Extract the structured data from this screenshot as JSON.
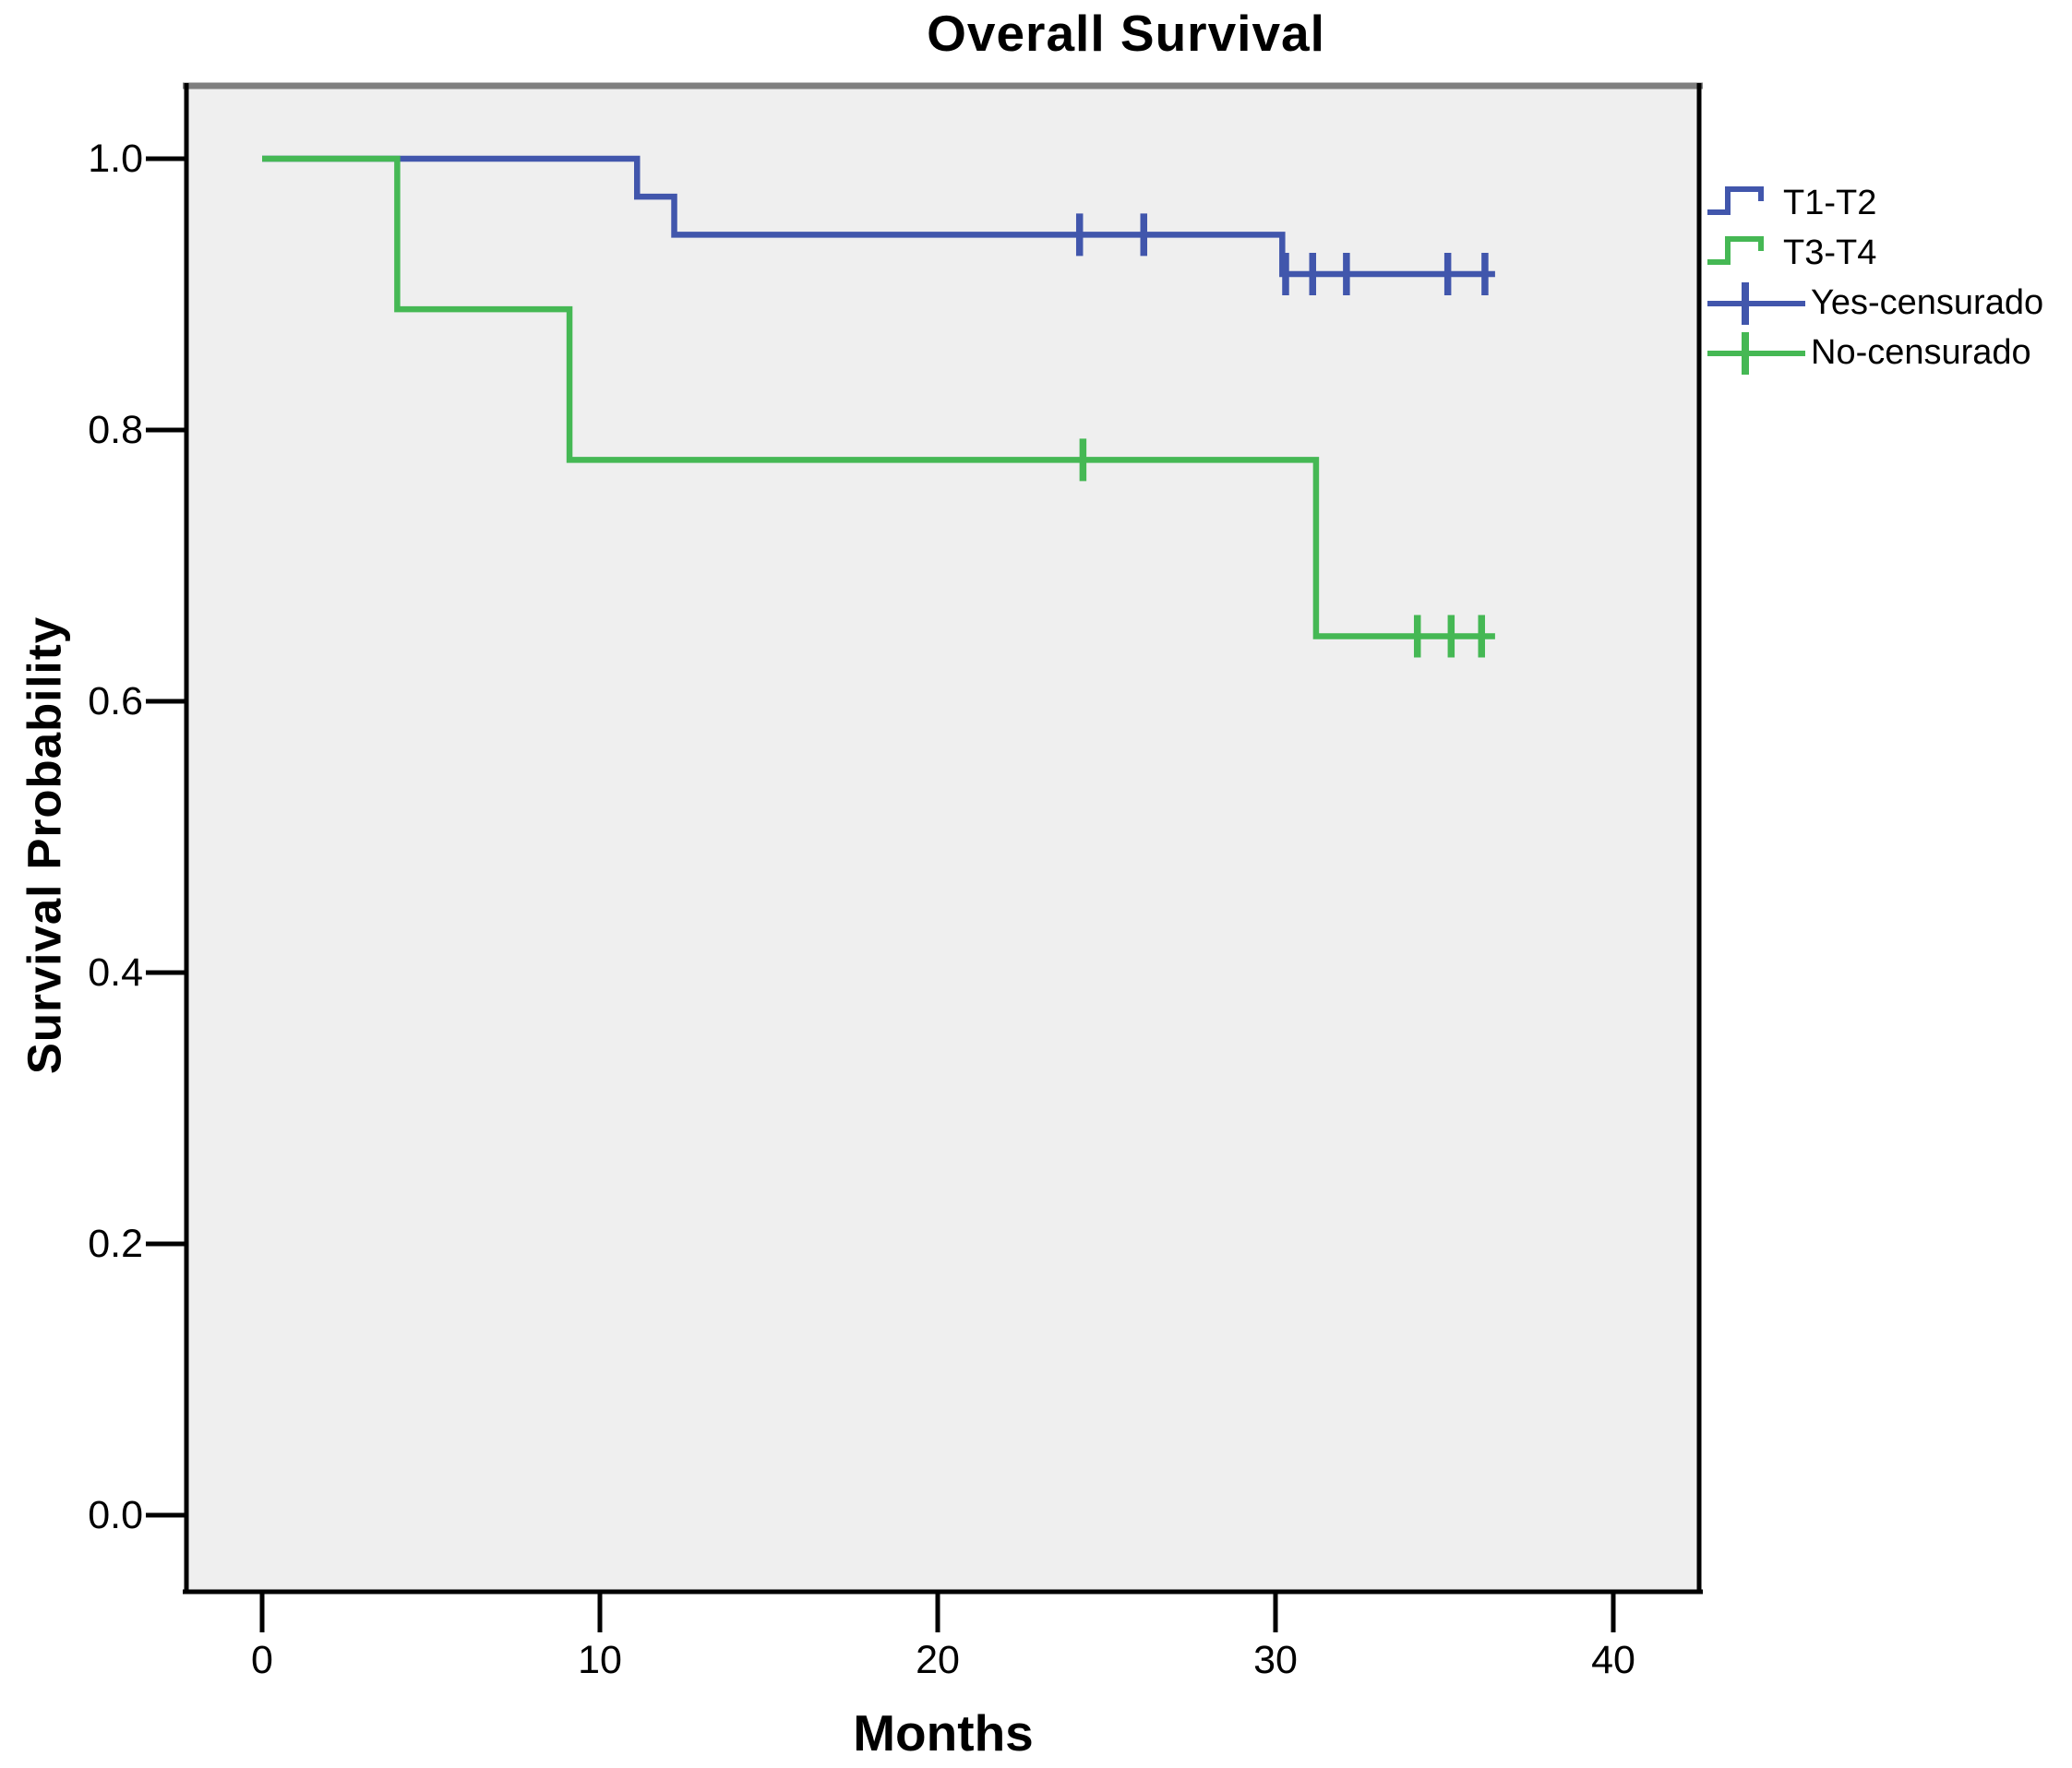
{
  "chart_data": {
    "type": "line",
    "subtype": "kaplan-meier-step",
    "title": "Overall Survival",
    "xlabel": "Months",
    "ylabel": "Survival Probability",
    "xlim": [
      -2.3,
      42.6
    ],
    "ylim": [
      -0.06,
      1.08
    ],
    "grid": false,
    "plot_background": "#efefef",
    "frame_top_color": "#7f7f7f",
    "frame_color": "#000000",
    "xticks": [
      0,
      10,
      20,
      30,
      40
    ],
    "yticks": [
      1.0,
      0.8,
      0.6,
      0.4,
      0.2,
      0.0
    ],
    "xtick_labels": [
      "0",
      "10",
      "20",
      "30",
      "40"
    ],
    "ytick_labels": [
      "1.0",
      "0.8",
      "0.6",
      "0.4",
      "0.2",
      "0.0"
    ],
    "censor_marker": "plus",
    "series": [
      {
        "name": "T1-T2",
        "color": "#4156ac",
        "steps": [
          [
            0,
            1.0
          ],
          [
            11.1,
            1.0
          ],
          [
            11.1,
            0.972
          ],
          [
            12.2,
            0.972
          ],
          [
            12.2,
            0.944
          ],
          [
            30.2,
            0.944
          ],
          [
            30.2,
            0.915
          ],
          [
            36.5,
            0.915
          ]
        ],
        "censored": [
          [
            24.2,
            0.944
          ],
          [
            26.1,
            0.944
          ],
          [
            30.3,
            0.915
          ],
          [
            31.1,
            0.915
          ],
          [
            32.1,
            0.915
          ],
          [
            35.1,
            0.915
          ],
          [
            36.2,
            0.915
          ]
        ]
      },
      {
        "name": "T3-T4",
        "color": "#45b854",
        "steps": [
          [
            0,
            1.0
          ],
          [
            4.0,
            1.0
          ],
          [
            4.0,
            0.889
          ],
          [
            9.1,
            0.889
          ],
          [
            9.1,
            0.778
          ],
          [
            31.2,
            0.778
          ],
          [
            31.2,
            0.648
          ],
          [
            36.5,
            0.648
          ]
        ],
        "censored": [
          [
            24.3,
            0.778
          ],
          [
            34.2,
            0.648
          ],
          [
            35.2,
            0.648
          ],
          [
            36.1,
            0.648
          ]
        ]
      }
    ],
    "legend_position": "right",
    "legend": [
      {
        "label": "T1-T2",
        "symbol": "step",
        "color": "#4156ac"
      },
      {
        "label": "T3-T4",
        "symbol": "step",
        "color": "#45b854"
      },
      {
        "label": "Yes-censurado",
        "symbol": "plus",
        "color": "#4156ac"
      },
      {
        "label": "No-censurado",
        "symbol": "plus",
        "color": "#45b854"
      }
    ]
  }
}
